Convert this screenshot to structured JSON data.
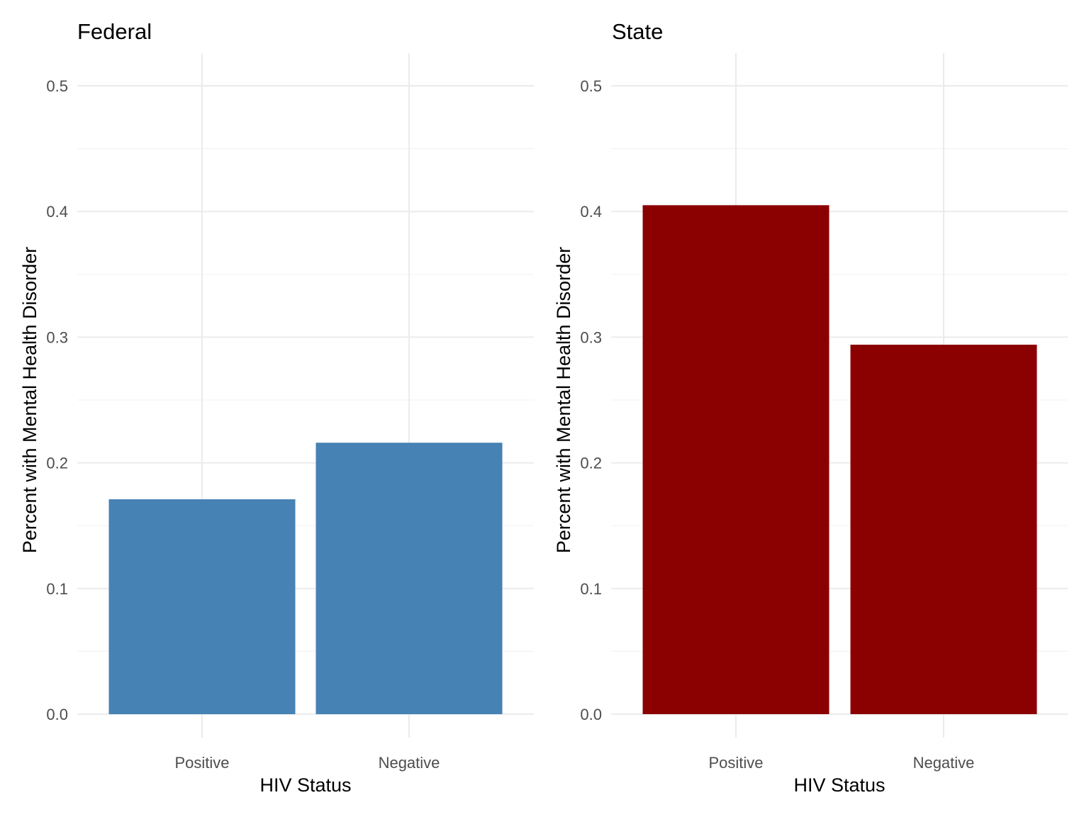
{
  "chart_data": [
    {
      "type": "bar",
      "title": "Federal",
      "xlabel": "HIV Status",
      "ylabel": "Percent with Mental Health Disorder",
      "categories": [
        "Positive",
        "Negative"
      ],
      "values": [
        0.171,
        0.216
      ],
      "ylim": [
        0,
        0.5
      ],
      "yticks": [
        "0.0",
        "0.1",
        "0.2",
        "0.3",
        "0.4",
        "0.5"
      ],
      "bar_color": "#4682B4",
      "grid": true
    },
    {
      "type": "bar",
      "title": "State",
      "xlabel": "HIV Status",
      "ylabel": "Percent with Mental Health Disorder",
      "categories": [
        "Positive",
        "Negative"
      ],
      "values": [
        0.405,
        0.294
      ],
      "ylim": [
        0,
        0.5
      ],
      "yticks": [
        "0.0",
        "0.1",
        "0.2",
        "0.3",
        "0.4",
        "0.5"
      ],
      "bar_color": "#8B0000",
      "grid": true
    }
  ]
}
